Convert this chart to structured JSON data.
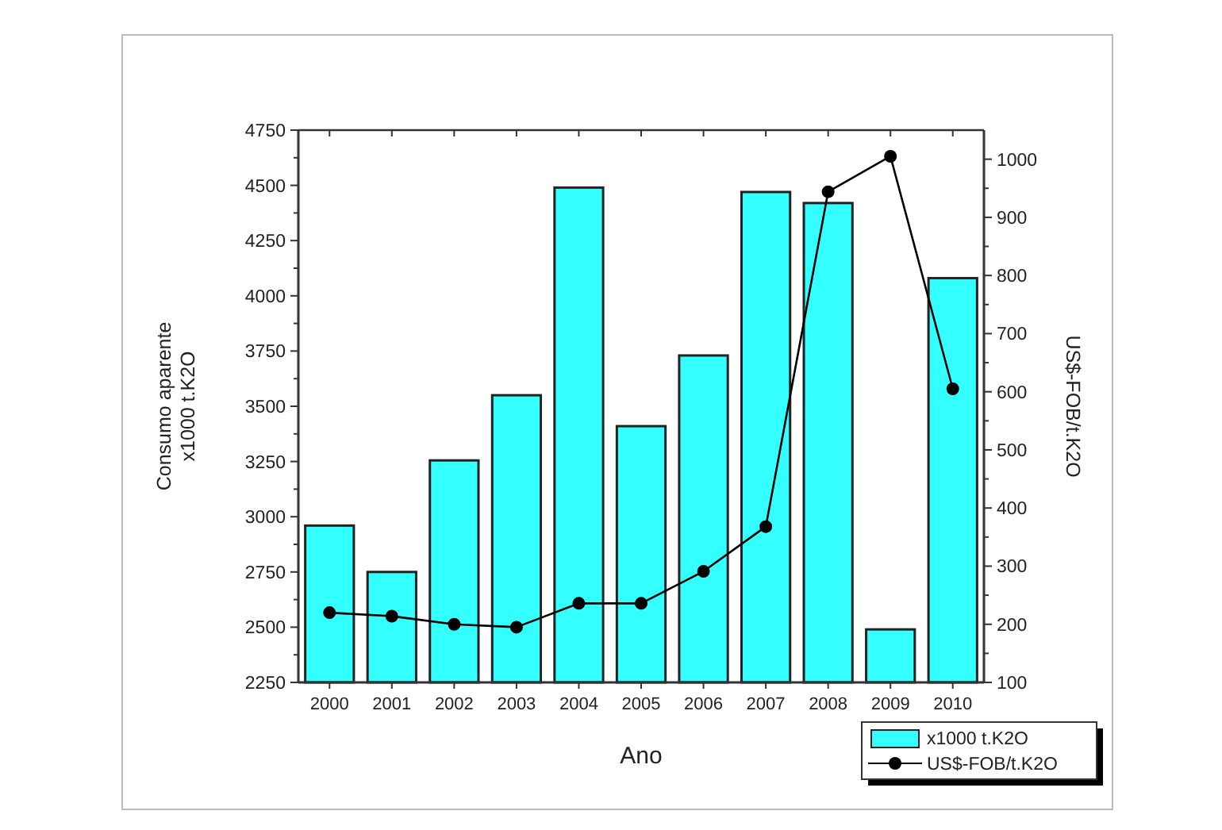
{
  "chart_data": {
    "type": "bar",
    "xlabel": "Ano",
    "ylabel": "Consumo aparente\nx1000 t.K2O",
    "y2label": "US$-FOB/t.K2O",
    "categories": [
      "2000",
      "2001",
      "2002",
      "2003",
      "2004",
      "2005",
      "2006",
      "2007",
      "2008",
      "2009",
      "2010"
    ],
    "series": [
      {
        "name": "x1000 t.K2O",
        "color": "#33ffff",
        "values": [
          2960,
          2750,
          3255,
          3550,
          4490,
          3410,
          3730,
          4470,
          4420,
          2490,
          4080
        ]
      },
      {
        "name": "US$-FOB/t.K2O",
        "type": "line",
        "axis": "y2",
        "color": "#000000",
        "marker": "circle",
        "values": [
          220,
          214,
          200,
          195,
          236,
          236,
          291,
          368,
          944,
          1005,
          605
        ]
      }
    ],
    "ylim": [
      2250,
      4750
    ],
    "yticks": [
      2250,
      2500,
      2750,
      3000,
      3250,
      3500,
      3750,
      4000,
      4250,
      4500,
      4750
    ],
    "y2lim": [
      100,
      1050
    ],
    "y2ticks": [
      100,
      200,
      300,
      400,
      500,
      600,
      700,
      800,
      900,
      1000
    ],
    "grid": false,
    "legend": "bottom right"
  }
}
